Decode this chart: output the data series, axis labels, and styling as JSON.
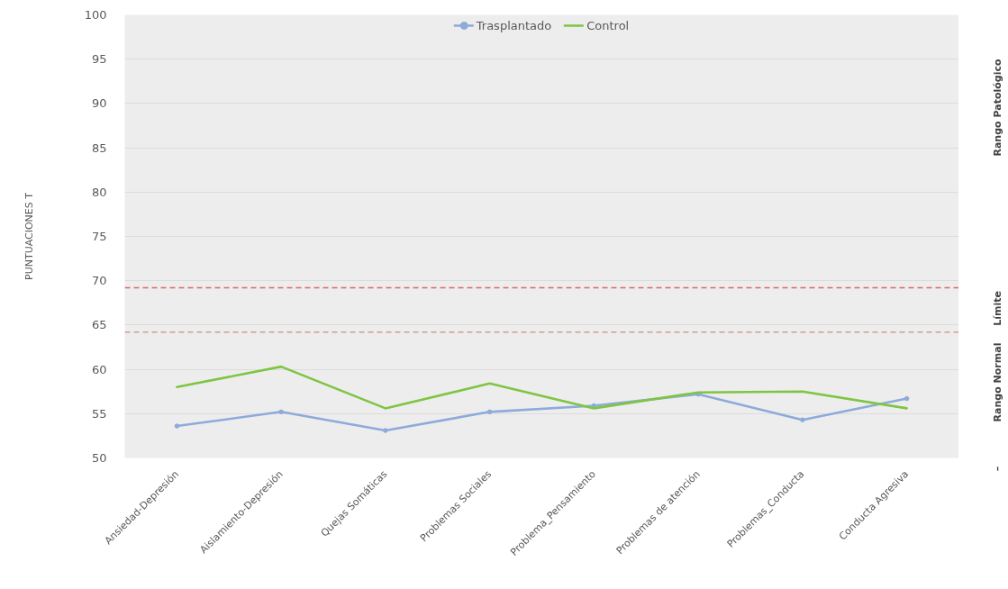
{
  "chart_data": {
    "type": "line",
    "ylabel": "PUNTUACIONES T",
    "categories": [
      "Ansiedad-Depresión",
      "Aislamiento-Depresión",
      "Quejas Somáticas",
      "Problemas Sociales",
      "Problema_Pensamiento",
      "Problemas de atención",
      "Problemas_Conducta",
      "Conducta Agresiva"
    ],
    "series": [
      {
        "name": "Trasplantado",
        "color": "#8eaadb",
        "marker": "circle",
        "values": [
          53.6,
          55.2,
          53.1,
          55.2,
          55.9,
          57.2,
          54.3,
          56.7
        ]
      },
      {
        "name": "Control",
        "color": "#7ec544",
        "marker": "none",
        "values": [
          58.0,
          60.3,
          55.6,
          58.4,
          55.6,
          57.4,
          57.5,
          55.6
        ]
      }
    ],
    "ylim": [
      50,
      100
    ],
    "yticks": [
      50,
      55,
      60,
      65,
      70,
      75,
      80,
      85,
      90,
      95,
      100
    ],
    "grid": "y",
    "legend": "top",
    "ref_lines": [
      {
        "axis": "y",
        "value": 69.2,
        "color": "#e06666",
        "line_style": "dashed"
      },
      {
        "axis": "y",
        "value": 64.2,
        "color": "#d49a9a",
        "line_style": "dashed"
      }
    ],
    "annotations": [
      "Rango Patológico",
      "Límite",
      "Rango Normal",
      "–"
    ]
  }
}
